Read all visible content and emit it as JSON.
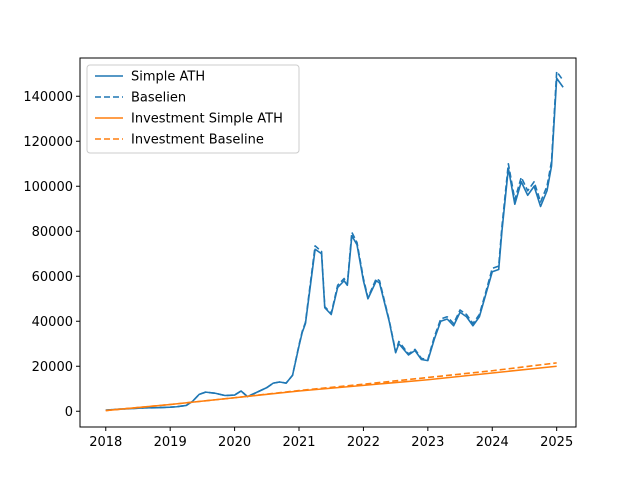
{
  "chart_data": {
    "type": "line",
    "title": "",
    "xlabel": "",
    "ylabel": "",
    "xlim": [
      2017.6,
      2025.3
    ],
    "ylim": [
      -7000,
      157000
    ],
    "grid": false,
    "legend_position": "upper-left",
    "x_ticks": [
      2018,
      2019,
      2020,
      2021,
      2022,
      2023,
      2024,
      2025
    ],
    "x_tick_labels": [
      "2018",
      "2019",
      "2020",
      "2021",
      "2022",
      "2023",
      "2024",
      "2025"
    ],
    "y_ticks": [
      0,
      20000,
      40000,
      60000,
      80000,
      100000,
      120000,
      140000
    ],
    "y_tick_labels": [
      "0",
      "20000",
      "40000",
      "60000",
      "80000",
      "100000",
      "120000",
      "140000"
    ],
    "series": [
      {
        "name": "Simple ATH",
        "color": "#1f77b4",
        "dash": "solid",
        "points": [
          [
            2018.0,
            500
          ],
          [
            2018.2,
            900
          ],
          [
            2018.4,
            1200
          ],
          [
            2018.6,
            1500
          ],
          [
            2018.8,
            1600
          ],
          [
            2019.0,
            1800
          ],
          [
            2019.1,
            2000
          ],
          [
            2019.25,
            2600
          ],
          [
            2019.35,
            4500
          ],
          [
            2019.45,
            7500
          ],
          [
            2019.55,
            8500
          ],
          [
            2019.7,
            8000
          ],
          [
            2019.85,
            7000
          ],
          [
            2020.0,
            7200
          ],
          [
            2020.1,
            9000
          ],
          [
            2020.2,
            6500
          ],
          [
            2020.35,
            8500
          ],
          [
            2020.5,
            10500
          ],
          [
            2020.6,
            12500
          ],
          [
            2020.7,
            13000
          ],
          [
            2020.8,
            12500
          ],
          [
            2020.9,
            16000
          ],
          [
            2021.0,
            29000
          ],
          [
            2021.05,
            35000
          ],
          [
            2021.1,
            39000
          ],
          [
            2021.15,
            50000
          ],
          [
            2021.25,
            72000
          ],
          [
            2021.35,
            70000
          ],
          [
            2021.4,
            46000
          ],
          [
            2021.5,
            43000
          ],
          [
            2021.6,
            55000
          ],
          [
            2021.7,
            58000
          ],
          [
            2021.75,
            56000
          ],
          [
            2021.82,
            78000
          ],
          [
            2021.9,
            74000
          ],
          [
            2022.0,
            58000
          ],
          [
            2022.07,
            50000
          ],
          [
            2022.2,
            58000
          ],
          [
            2022.25,
            57000
          ],
          [
            2022.4,
            40000
          ],
          [
            2022.5,
            26000
          ],
          [
            2022.55,
            30000
          ],
          [
            2022.7,
            25000
          ],
          [
            2022.8,
            27000
          ],
          [
            2022.9,
            23000
          ],
          [
            2023.0,
            22500
          ],
          [
            2023.1,
            32000
          ],
          [
            2023.2,
            40000
          ],
          [
            2023.3,
            41000
          ],
          [
            2023.4,
            38000
          ],
          [
            2023.5,
            44000
          ],
          [
            2023.6,
            42000
          ],
          [
            2023.7,
            38000
          ],
          [
            2023.8,
            42000
          ],
          [
            2023.9,
            52000
          ],
          [
            2024.0,
            62000
          ],
          [
            2024.1,
            63000
          ],
          [
            2024.15,
            80000
          ],
          [
            2024.25,
            108000
          ],
          [
            2024.35,
            92000
          ],
          [
            2024.45,
            102000
          ],
          [
            2024.55,
            96000
          ],
          [
            2024.65,
            100000
          ],
          [
            2024.75,
            91000
          ],
          [
            2024.85,
            98000
          ],
          [
            2024.92,
            109000
          ],
          [
            2025.0,
            148000
          ],
          [
            2025.1,
            144000
          ]
        ]
      },
      {
        "name": "Baselien",
        "color": "#1f77b4",
        "dash": "dashed",
        "points": [
          [
            2018.0,
            500
          ],
          [
            2018.2,
            900
          ],
          [
            2018.4,
            1200
          ],
          [
            2018.6,
            1500
          ],
          [
            2018.8,
            1600
          ],
          [
            2019.0,
            1800
          ],
          [
            2019.1,
            2000
          ],
          [
            2019.25,
            2600
          ],
          [
            2019.35,
            4500
          ],
          [
            2019.45,
            7500
          ],
          [
            2019.55,
            8500
          ],
          [
            2019.7,
            8000
          ],
          [
            2019.85,
            7000
          ],
          [
            2020.0,
            7200
          ],
          [
            2020.1,
            9000
          ],
          [
            2020.2,
            6500
          ],
          [
            2020.35,
            8500
          ],
          [
            2020.5,
            10500
          ],
          [
            2020.6,
            12500
          ],
          [
            2020.7,
            13000
          ],
          [
            2020.8,
            12500
          ],
          [
            2020.9,
            16000
          ],
          [
            2021.0,
            29500
          ],
          [
            2021.05,
            35500
          ],
          [
            2021.1,
            39500
          ],
          [
            2021.15,
            51000
          ],
          [
            2021.25,
            73500
          ],
          [
            2021.35,
            71000
          ],
          [
            2021.4,
            46500
          ],
          [
            2021.5,
            43500
          ],
          [
            2021.6,
            56000
          ],
          [
            2021.7,
            59000
          ],
          [
            2021.75,
            56500
          ],
          [
            2021.82,
            79500
          ],
          [
            2021.9,
            75000
          ],
          [
            2022.0,
            59000
          ],
          [
            2022.07,
            50500
          ],
          [
            2022.2,
            59000
          ],
          [
            2022.25,
            58000
          ],
          [
            2022.4,
            40500
          ],
          [
            2022.5,
            26500
          ],
          [
            2022.55,
            31000
          ],
          [
            2022.7,
            25500
          ],
          [
            2022.8,
            27500
          ],
          [
            2022.9,
            23500
          ],
          [
            2023.0,
            23000
          ],
          [
            2023.1,
            33000
          ],
          [
            2023.2,
            41000
          ],
          [
            2023.3,
            42000
          ],
          [
            2023.4,
            39000
          ],
          [
            2023.5,
            45000
          ],
          [
            2023.6,
            43000
          ],
          [
            2023.7,
            39000
          ],
          [
            2023.8,
            43000
          ],
          [
            2023.9,
            53000
          ],
          [
            2024.0,
            63500
          ],
          [
            2024.1,
            64500
          ],
          [
            2024.15,
            82000
          ],
          [
            2024.25,
            110000
          ],
          [
            2024.35,
            94000
          ],
          [
            2024.45,
            104000
          ],
          [
            2024.55,
            98000
          ],
          [
            2024.65,
            102000
          ],
          [
            2024.75,
            93000
          ],
          [
            2024.85,
            100000
          ],
          [
            2024.92,
            111000
          ],
          [
            2025.0,
            151000
          ],
          [
            2025.1,
            147000
          ]
        ]
      },
      {
        "name": "Investment Simple ATH",
        "color": "#ff7f0e",
        "dash": "solid",
        "points": [
          [
            2018.0,
            300
          ],
          [
            2019.0,
            3000
          ],
          [
            2020.0,
            6000
          ],
          [
            2021.0,
            9000
          ],
          [
            2022.0,
            11500
          ],
          [
            2023.0,
            14000
          ],
          [
            2024.0,
            17000
          ],
          [
            2025.0,
            20000
          ]
        ]
      },
      {
        "name": "Investment Baseline",
        "color": "#ff7f0e",
        "dash": "dashed",
        "points": [
          [
            2018.0,
            300
          ],
          [
            2019.0,
            3000
          ],
          [
            2020.0,
            6000
          ],
          [
            2021.0,
            9200
          ],
          [
            2022.0,
            12000
          ],
          [
            2023.0,
            15000
          ],
          [
            2024.0,
            18000
          ],
          [
            2025.0,
            21500
          ]
        ]
      }
    ]
  }
}
